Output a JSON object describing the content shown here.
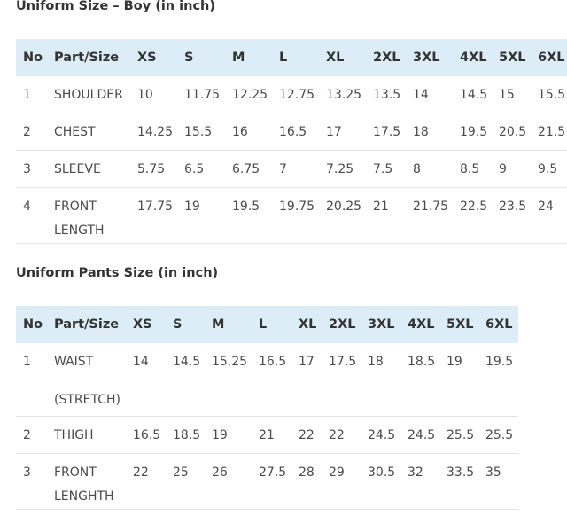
{
  "tables": [
    {
      "title": "Uniform Size – Boy (in inch)",
      "headers": [
        "No",
        "Part/Size",
        "XS",
        "S",
        "M",
        "L",
        "XL",
        "2XL",
        "3XL",
        "4XL",
        "5XL",
        "6XL"
      ],
      "rows": [
        {
          "no": "1",
          "part": [
            "SHOULDER"
          ],
          "values": [
            10,
            11.75,
            12.25,
            12.75,
            13.25,
            13.5,
            14,
            14.5,
            15,
            15.5
          ]
        },
        {
          "no": "2",
          "part": [
            "CHEST"
          ],
          "values": [
            14.25,
            15.5,
            16,
            16.5,
            17,
            17.5,
            18,
            19.5,
            20.5,
            21.5
          ]
        },
        {
          "no": "3",
          "part": [
            "SLEEVE"
          ],
          "values": [
            5.75,
            6.5,
            6.75,
            7,
            7.25,
            7.5,
            8,
            8.5,
            9,
            9.5
          ]
        },
        {
          "no": "4",
          "part": [
            "FRONT",
            "LENGTH"
          ],
          "values": [
            17.75,
            19,
            19.5,
            19.75,
            20.25,
            21,
            21.75,
            22.5,
            23.5,
            24
          ]
        }
      ]
    },
    {
      "title": "Uniform Pants Size (in inch)",
      "headers": [
        "No",
        "Part/Size",
        "XS",
        "S",
        "M",
        "L",
        "XL",
        "2XL",
        "3XL",
        "4XL",
        "5XL",
        "6XL"
      ],
      "rows": [
        {
          "no": "1",
          "part": [
            "WAIST",
            "(STRETCH)"
          ],
          "values": [
            14,
            14.5,
            15.25,
            16.5,
            17,
            17.5,
            18,
            18.5,
            19,
            19.5
          ]
        },
        {
          "no": "2",
          "part": [
            "THIGH"
          ],
          "values": [
            16.5,
            18.5,
            19,
            21,
            22,
            22,
            24.5,
            24.5,
            25.5,
            25.5
          ]
        },
        {
          "no": "3",
          "part": [
            "FRONT",
            "LENGHTH"
          ],
          "values": [
            22,
            25,
            26,
            27.5,
            28,
            29,
            30.5,
            32,
            33.5,
            35
          ]
        }
      ]
    }
  ]
}
